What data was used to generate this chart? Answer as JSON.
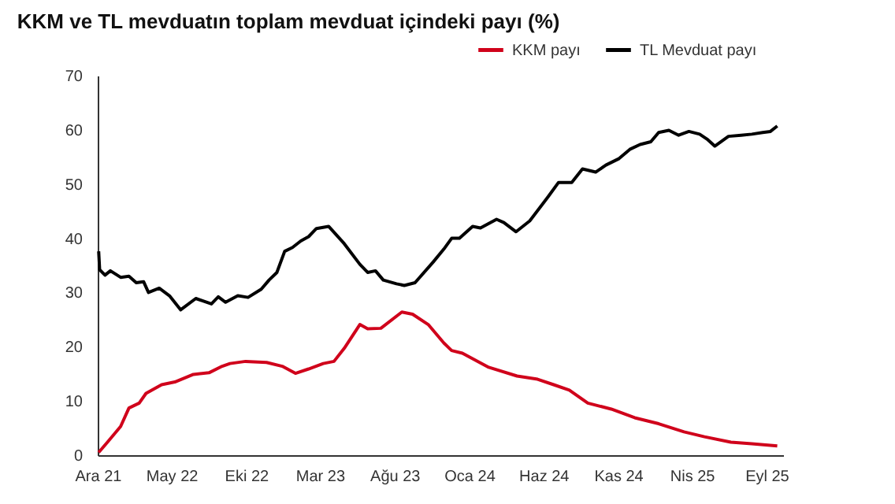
{
  "chart_data": {
    "type": "line",
    "title": "KKM ve TL mevduatın toplam mevduat içindeki payı (%)",
    "xlim": [
      "2021-12-01",
      "2025-10-05"
    ],
    "xticks": [
      {
        "value": "2021-12-01",
        "label": "Ara 21"
      },
      {
        "value": "2022-05-01",
        "label": "May 22"
      },
      {
        "value": "2022-10-01",
        "label": "Eki 22"
      },
      {
        "value": "2023-03-01",
        "label": "Mar 23"
      },
      {
        "value": "2023-08-01",
        "label": "Ağu 23"
      },
      {
        "value": "2024-01-01",
        "label": "Oca 24"
      },
      {
        "value": "2024-06-01",
        "label": "Haz 24"
      },
      {
        "value": "2024-11-01",
        "label": "Kas 24"
      },
      {
        "value": "2025-04-01",
        "label": "Nis 25"
      },
      {
        "value": "2025-09-01",
        "label": "Eyl 25"
      }
    ],
    "ylim": [
      0,
      70
    ],
    "yticks": [
      0,
      10,
      20,
      30,
      40,
      50,
      60,
      70
    ],
    "grid": false,
    "legend": "top right",
    "line_style": "solid",
    "marker": "none",
    "series": [
      {
        "name": "KKM payı",
        "color": "#d0021b",
        "x": [
          "2021-12-03",
          "2021-12-21",
          "2022-01-17",
          "2022-02-03",
          "2022-02-24",
          "2022-03-10",
          "2022-04-11",
          "2022-05-08",
          "2022-06-15",
          "2022-07-17",
          "2022-08-13",
          "2022-08-29",
          "2022-09-30",
          "2022-11-12",
          "2022-12-14",
          "2023-01-10",
          "2023-02-06",
          "2023-03-08",
          "2023-03-30",
          "2023-04-20",
          "2023-05-22",
          "2023-06-07",
          "2023-07-04",
          "2023-08-16",
          "2023-09-07",
          "2023-10-09",
          "2023-11-10",
          "2023-11-26",
          "2023-12-18",
          "2024-02-10",
          "2024-04-08",
          "2024-05-20",
          "2024-06-22",
          "2024-07-24",
          "2024-08-31",
          "2024-10-18",
          "2024-12-05",
          "2025-01-23",
          "2025-03-16",
          "2025-04-27",
          "2025-06-20",
          "2025-08-02",
          "2025-09-23"
        ],
        "values": [
          0.5,
          2.4,
          5.3,
          8.7,
          9.6,
          11.4,
          13,
          13.5,
          14.9,
          15.2,
          16.4,
          16.9,
          17.3,
          17.1,
          16.4,
          15.1,
          15.9,
          16.9,
          17.3,
          19.7,
          24.1,
          23.3,
          23.4,
          26.4,
          26,
          24.1,
          20.7,
          19.3,
          18.8,
          16.2,
          14.6,
          14,
          13,
          12,
          9.6,
          8.5,
          6.9,
          5.8,
          4.3,
          3.4,
          2.4,
          2.1,
          1.7
        ]
      },
      {
        "name": "TL Mevduat payı",
        "color": "#000000",
        "x": [
          "2021-12-03",
          "2021-12-05",
          "2021-12-16",
          "2021-12-27",
          "2022-01-17",
          "2022-02-03",
          "2022-02-18",
          "2022-03-05",
          "2022-03-15",
          "2022-04-06",
          "2022-04-27",
          "2022-05-20",
          "2022-06-20",
          "2022-07-22",
          "2022-08-05",
          "2022-08-20",
          "2022-09-14",
          "2022-10-05",
          "2022-11-01",
          "2022-11-17",
          "2022-12-03",
          "2022-12-19",
          "2023-01-04",
          "2023-01-21",
          "2023-02-06",
          "2023-02-22",
          "2023-03-19",
          "2023-04-20",
          "2023-05-22",
          "2023-06-07",
          "2023-06-23",
          "2023-07-09",
          "2023-08-05",
          "2023-08-21",
          "2023-09-12",
          "2023-10-19",
          "2023-11-10",
          "2023-11-26",
          "2023-12-12",
          "2024-01-08",
          "2024-01-24",
          "2024-02-26",
          "2024-03-12",
          "2024-04-06",
          "2024-05-04",
          "2024-06-11",
          "2024-07-02",
          "2024-07-29",
          "2024-08-20",
          "2024-09-16",
          "2024-10-07",
          "2024-11-03",
          "2024-11-25",
          "2024-12-16",
          "2025-01-07",
          "2025-01-23",
          "2025-02-13",
          "2025-03-05",
          "2025-03-26",
          "2025-04-17",
          "2025-05-02",
          "2025-05-18",
          "2025-06-15",
          "2025-07-11",
          "2025-08-02",
          "2025-08-24",
          "2025-09-09",
          "2025-09-23"
        ],
        "values": [
          37.6,
          34.2,
          33.2,
          34,
          32.8,
          33,
          31.8,
          32,
          30,
          30.8,
          29.4,
          26.8,
          28.9,
          27.9,
          29.2,
          28.2,
          29.4,
          29.1,
          30.6,
          32.3,
          33.7,
          37.6,
          38.3,
          39.5,
          40.3,
          41.8,
          42.2,
          39,
          35.2,
          33.7,
          34,
          32.3,
          31.6,
          31.3,
          31.8,
          35.6,
          38,
          40,
          40,
          42.2,
          41.9,
          43.5,
          42.9,
          41.2,
          43.2,
          47.7,
          50.3,
          50.3,
          52.8,
          52.2,
          53.5,
          54.7,
          56.4,
          57.3,
          57.8,
          59.5,
          59.9,
          59,
          59.7,
          59.2,
          58.3,
          57,
          58.8,
          59,
          59.2,
          59.5,
          59.7,
          60.7
        ]
      }
    ]
  }
}
